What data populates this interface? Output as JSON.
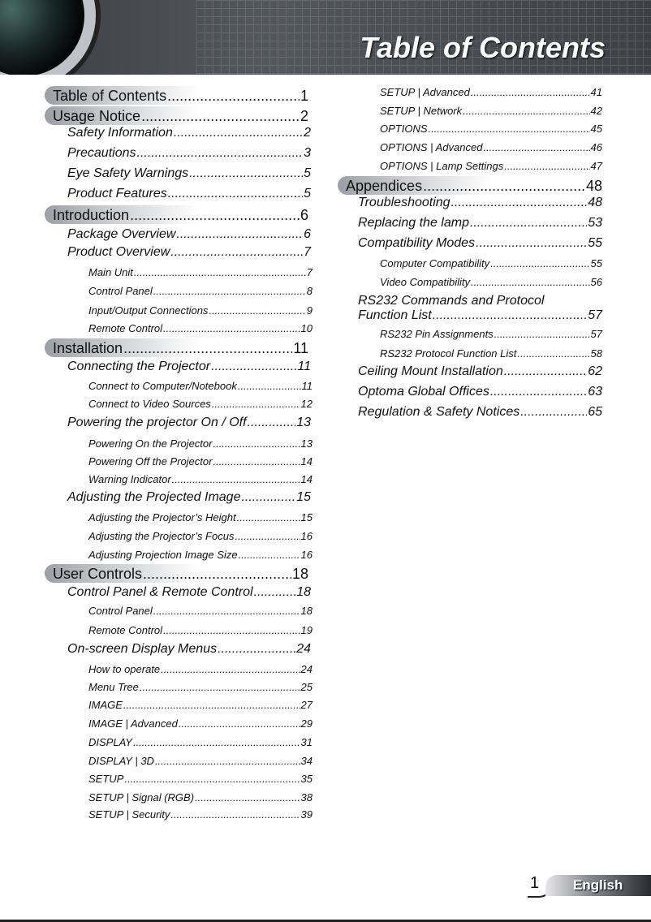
{
  "header": {
    "title": "Table of Contents"
  },
  "left_column": [
    {
      "level": 1,
      "text": "Table of Contents",
      "page": "1"
    },
    {
      "level": 1,
      "text": "Usage Notice",
      "page": "2"
    },
    {
      "level": 2,
      "text": "Safety Information",
      "page": "2"
    },
    {
      "level": 2,
      "text": "Precautions",
      "page": "3"
    },
    {
      "level": 2,
      "text": "Eye Safety Warnings",
      "page": "5"
    },
    {
      "level": 2,
      "text": "Product Features",
      "page": "5"
    },
    {
      "level": 1,
      "text": "Introduction",
      "page": "6"
    },
    {
      "level": 2,
      "text": "Package Overview",
      "page": "6"
    },
    {
      "level": 2,
      "text": "Product Overview",
      "page": "7"
    },
    {
      "level": 3,
      "text": "Main Unit",
      "page": "7"
    },
    {
      "level": 3,
      "text": "Control Panel",
      "page": "8"
    },
    {
      "level": 3,
      "text": "Input/Output Connections",
      "page": "9"
    },
    {
      "level": 3,
      "text": "Remote Control",
      "page": "10"
    },
    {
      "level": 1,
      "text": "Installation",
      "page": "11"
    },
    {
      "level": 2,
      "text": "Connecting the Projector",
      "page": "11"
    },
    {
      "level": 3,
      "text": "Connect to Computer/Notebook",
      "page": "11"
    },
    {
      "level": 3,
      "text": "Connect to Video Sources",
      "page": "12"
    },
    {
      "level": 2,
      "text": "Powering the projector On / Off",
      "page": "13"
    },
    {
      "level": 3,
      "text": "Powering On the Projector",
      "page": "13"
    },
    {
      "level": 3,
      "text": "Powering Off the Projector",
      "page": "14"
    },
    {
      "level": 3,
      "text": "Warning Indicator",
      "page": "14"
    },
    {
      "level": 2,
      "text": "Adjusting the Projected Image",
      "page": "15"
    },
    {
      "level": 3,
      "text": "Adjusting the Projector’s Height",
      "page": "15"
    },
    {
      "level": 3,
      "text": "Adjusting the Projector’s Focus",
      "page": "16"
    },
    {
      "level": 3,
      "text": "Adjusting Projection Image Size",
      "page": "16"
    },
    {
      "level": 1,
      "text": "User Controls",
      "page": "18"
    },
    {
      "level": 2,
      "text": "Control Panel & Remote Control",
      "page": "18"
    },
    {
      "level": 3,
      "text": "Control Panel",
      "page": "18"
    },
    {
      "level": 3,
      "text": "Remote Control",
      "page": "19"
    },
    {
      "level": 2,
      "text": "On-screen Display Menus",
      "page": "24"
    },
    {
      "level": 3,
      "text": "How to operate",
      "page": "24"
    },
    {
      "level": 3,
      "text": "Menu Tree",
      "page": "25"
    },
    {
      "level": 3,
      "text": "IMAGE",
      "page": "27"
    },
    {
      "level": 3,
      "text": "IMAGE | Advanced",
      "page": "29"
    },
    {
      "level": 3,
      "text": "DISPLAY",
      "page": "31"
    },
    {
      "level": 3,
      "text": "DISPLAY | 3D",
      "page": "34"
    },
    {
      "level": 3,
      "text": "SETUP",
      "page": "35"
    },
    {
      "level": 3,
      "text": "SETUP | Signal (RGB)",
      "page": "38"
    },
    {
      "level": 3,
      "text": "SETUP | Security",
      "page": "39"
    }
  ],
  "right_column": [
    {
      "level": 3,
      "text": "SETUP | Advanced",
      "page": "41"
    },
    {
      "level": 3,
      "text": "SETUP | Network",
      "page": "42"
    },
    {
      "level": 3,
      "text": "OPTIONS",
      "page": "45"
    },
    {
      "level": 3,
      "text": "OPTIONS | Advanced",
      "page": "46"
    },
    {
      "level": 3,
      "text": "OPTIONS | Lamp Settings",
      "page": "47"
    },
    {
      "level": 1,
      "text": "Appendices",
      "page": "48"
    },
    {
      "level": 2,
      "text": "Troubleshooting",
      "page": "48"
    },
    {
      "level": 2,
      "text": "Replacing the lamp",
      "page": "53"
    },
    {
      "level": 2,
      "text": "Compatibility Modes",
      "page": "55"
    },
    {
      "level": 3,
      "text": "Computer Compatibility",
      "page": "55"
    },
    {
      "level": 3,
      "text": "Video Compatibility",
      "page": "56"
    },
    {
      "level": 2,
      "text": "RS232 Commands and Protocol",
      "page": ""
    },
    {
      "level": 2,
      "text": "Function List",
      "page": "57"
    },
    {
      "level": 3,
      "text": "RS232 Pin Assignments",
      "page": "57"
    },
    {
      "level": 3,
      "text": "RS232 Protocol Function List",
      "page": "58"
    },
    {
      "level": 2,
      "text": "Ceiling Mount Installation",
      "page": "62"
    },
    {
      "level": 2,
      "text": "Optoma Global Offices",
      "page": "63"
    },
    {
      "level": 2,
      "text": "Regulation & Safety Notices",
      "page": "65"
    }
  ],
  "footer": {
    "page_number": "1",
    "language": "English"
  }
}
